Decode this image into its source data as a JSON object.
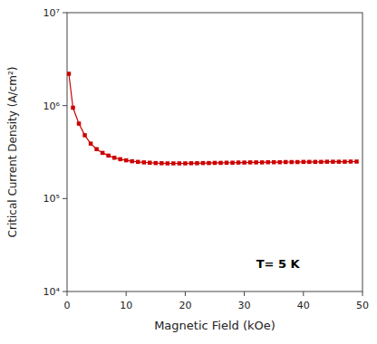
{
  "chart_data": {
    "type": "line",
    "xlabel": "Magnetic Field (kOe)",
    "ylabel": "Critical Current Density (A/cm²)",
    "annotations": [
      {
        "text": "T= 5 K",
        "x": 32,
        "y": 18000
      }
    ],
    "x": [
      0.3,
      1,
      2,
      3,
      4,
      5,
      6,
      7,
      8,
      9,
      10,
      11,
      12,
      13,
      14,
      15,
      16,
      17,
      18,
      19,
      20,
      21,
      22,
      23,
      24,
      25,
      26,
      27,
      28,
      29,
      30,
      31,
      32,
      33,
      34,
      35,
      36,
      37,
      38,
      39,
      40,
      41,
      42,
      43,
      44,
      45,
      46,
      47,
      48,
      49
    ],
    "values": [
      2200000,
      950000,
      640000,
      480000,
      390000,
      340000,
      310000,
      290000,
      275000,
      265000,
      258000,
      252000,
      248000,
      245000,
      243000,
      241000,
      240000,
      239000,
      239000,
      239000,
      239000,
      240000,
      240000,
      241000,
      241000,
      242000,
      242000,
      243000,
      243000,
      244000,
      244000,
      245000,
      245000,
      245000,
      246000,
      246000,
      246000,
      247000,
      247000,
      247000,
      248000,
      248000,
      248000,
      248000,
      249000,
      249000,
      249000,
      249000,
      250000,
      250000
    ],
    "color": "#cc0000",
    "marker": "square",
    "log": "y",
    "grid": false,
    "xlim": [
      0,
      50
    ],
    "ylim": [
      10000,
      10000000
    ],
    "xticks": [
      0,
      10,
      20,
      30,
      40,
      50
    ],
    "yticks": [
      {
        "value": 10000,
        "label": "10⁴"
      },
      {
        "value": 100000,
        "label": "10⁵"
      },
      {
        "value": 1000000,
        "label": "10⁶"
      },
      {
        "value": 10000000,
        "label": "10⁷"
      }
    ]
  }
}
